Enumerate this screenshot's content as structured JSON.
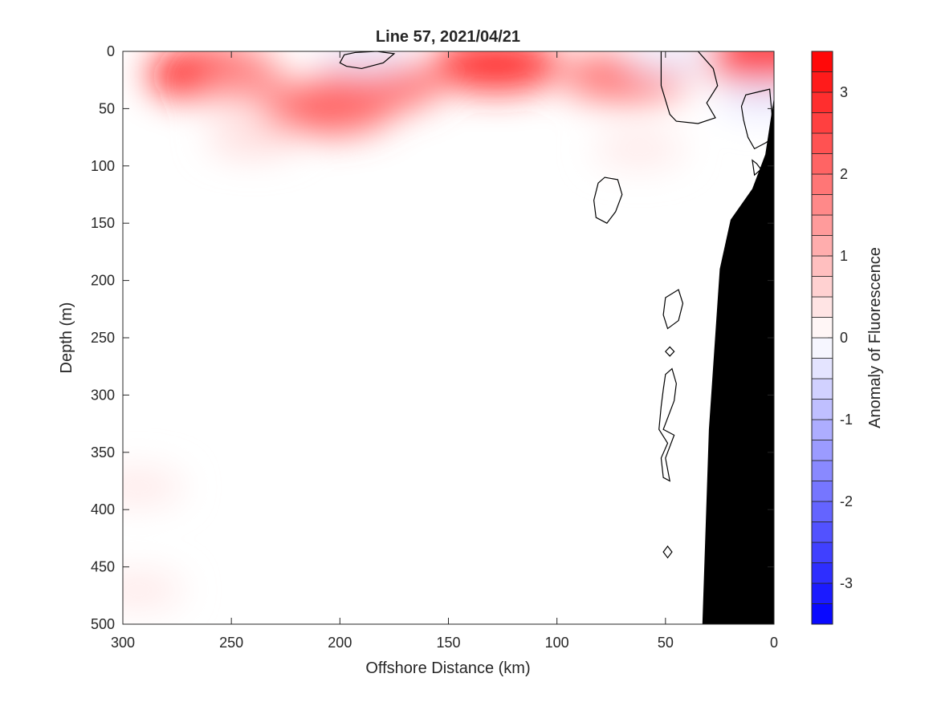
{
  "chart_data": {
    "type": "heatmap",
    "title": "Line 57, 2021/04/21",
    "xlabel": "Offshore Distance (km)",
    "ylabel": "Depth (m)",
    "colorbar_label": "Anomaly of Fluorescence",
    "xlim": [
      300,
      0
    ],
    "ylim": [
      0,
      500
    ],
    "x_reversed": true,
    "y_reversed": true,
    "xticks": [
      300,
      250,
      200,
      150,
      100,
      50,
      0
    ],
    "yticks": [
      0,
      50,
      100,
      150,
      200,
      250,
      300,
      350,
      400,
      450,
      500
    ],
    "colorbar_range": [
      -3.5,
      3.5
    ],
    "colorbar_step": 0.25,
    "colorbar_ticks": [
      3,
      2,
      1,
      0,
      -1,
      -2,
      -3
    ],
    "colormap": {
      "negative": "#0000ff",
      "zero": "#ffffff",
      "positive": "#ff0000"
    },
    "grid": false,
    "anomaly_features": [
      {
        "x": 258,
        "depth": 20,
        "value": 3.3
      },
      {
        "x": 128,
        "depth": 12,
        "value": 2.9
      },
      {
        "x": 5,
        "depth": 4,
        "value": 3.0
      },
      {
        "x": 205,
        "depth": 50,
        "value": 2.2
      },
      {
        "x": 183,
        "depth": 30,
        "value": 2.0
      },
      {
        "x": 68,
        "depth": 22,
        "value": 1.9
      },
      {
        "x": 245,
        "depth": 30,
        "value": 1.4
      },
      {
        "x": 240,
        "depth": 75,
        "value": 0.5
      },
      {
        "x": 62,
        "depth": 85,
        "value": 0.3
      },
      {
        "x": 293,
        "depth": 380,
        "value": 0.3
      },
      {
        "x": 293,
        "depth": 470,
        "value": 0.3
      },
      {
        "x": 188,
        "depth": 4,
        "value": -0.3
      },
      {
        "x": 48,
        "depth": 5,
        "value": -0.25
      },
      {
        "x": 5,
        "depth": 40,
        "value": -0.35
      }
    ],
    "zero_contours": [
      [
        [
          200,
          10
        ],
        [
          198,
          3
        ],
        [
          193,
          1
        ],
        [
          183,
          0
        ],
        [
          175,
          2
        ],
        [
          180,
          10
        ],
        [
          190,
          15
        ],
        [
          197,
          13
        ]
      ],
      [
        [
          52,
          0
        ],
        [
          52,
          30
        ],
        [
          48,
          55
        ],
        [
          45,
          61
        ],
        [
          35,
          63
        ],
        [
          27,
          58
        ],
        [
          31,
          45
        ],
        [
          26,
          30
        ],
        [
          28,
          15
        ],
        [
          35,
          0
        ]
      ],
      [
        [
          2,
          33
        ],
        [
          13,
          38
        ],
        [
          15,
          48
        ],
        [
          14,
          60
        ],
        [
          12,
          75
        ],
        [
          9,
          85
        ],
        [
          4,
          80
        ],
        [
          0,
          75
        ]
      ],
      [
        [
          10,
          95
        ],
        [
          8,
          98
        ],
        [
          6,
          103
        ],
        [
          9,
          108
        ]
      ],
      [
        [
          78,
          110
        ],
        [
          72,
          112
        ],
        [
          70,
          125
        ],
        [
          73,
          140
        ],
        [
          77,
          150
        ],
        [
          82,
          145
        ],
        [
          83,
          130
        ],
        [
          81,
          115
        ]
      ],
      [
        [
          50,
          215
        ],
        [
          44,
          208
        ],
        [
          42,
          220
        ],
        [
          44,
          235
        ],
        [
          49,
          242
        ],
        [
          51,
          230
        ]
      ],
      [
        [
          50,
          262
        ],
        [
          48,
          258
        ],
        [
          46,
          262
        ],
        [
          48,
          266
        ]
      ],
      [
        [
          50,
          282
        ],
        [
          47,
          277
        ],
        [
          45,
          290
        ],
        [
          46,
          305
        ],
        [
          48,
          315
        ],
        [
          51,
          330
        ],
        [
          46,
          335
        ],
        [
          50,
          355
        ],
        [
          48,
          375
        ],
        [
          51,
          372
        ],
        [
          52,
          355
        ],
        [
          49,
          342
        ],
        [
          53,
          330
        ],
        [
          52,
          310
        ],
        [
          51,
          295
        ]
      ],
      [
        [
          49,
          432
        ],
        [
          51,
          437
        ],
        [
          49,
          442
        ],
        [
          47,
          437
        ]
      ]
    ],
    "bathymetry": [
      [
        33,
        500
      ],
      [
        30,
        330
      ],
      [
        25,
        190
      ],
      [
        20,
        147
      ],
      [
        10,
        120
      ],
      [
        4,
        90
      ],
      [
        0,
        40
      ],
      [
        0,
        500
      ]
    ]
  }
}
